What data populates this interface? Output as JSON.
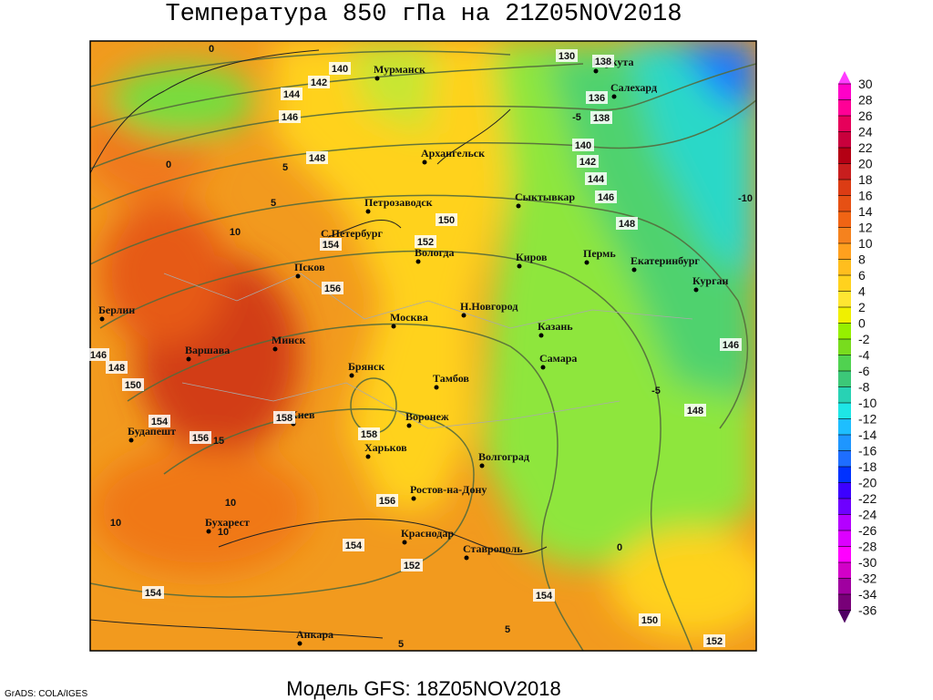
{
  "header": {
    "title": "Температура 850 гПа на 21Z05NOV2018"
  },
  "footer": {
    "model": "Модель GFS: 18Z05NOV2018",
    "credit": "GrADS: COLA/IGES"
  },
  "cities": [
    "Мурманск",
    "Воркута",
    "Салехард",
    "Архангельск",
    "Петрозаводск",
    "Сыктывкар",
    "С.Петербург",
    "Вологда",
    "Киров",
    "Пермь",
    "Екатеринбург",
    "Курган",
    "Псков",
    "Москва",
    "Н.Новгород",
    "Казань",
    "Берлин",
    "Варшава",
    "Минск",
    "Самара",
    "Брянск",
    "Тамбов",
    "Киев",
    "Воронеж",
    "Будапешт",
    "Харьков",
    "Волгоград",
    "Ростов-на-Дону",
    "Бухарест",
    "Краснодар",
    "Ставрополь",
    "Анкара"
  ],
  "contour_labels": [
    140,
    142,
    144,
    146,
    148,
    150,
    152,
    154,
    156,
    158,
    158,
    156,
    154,
    152,
    154,
    154,
    150,
    152,
    148,
    150,
    154,
    146,
    130,
    138,
    136,
    138,
    140,
    142,
    144,
    146,
    148,
    146,
    148,
    156
  ],
  "isotherm_labels": [
    0,
    0,
    5,
    5,
    10,
    10,
    10,
    10,
    5,
    -5,
    -5,
    0,
    15,
    5,
    -10
  ],
  "colorbar": {
    "ticks": [
      30,
      28,
      26,
      24,
      22,
      20,
      18,
      16,
      14,
      12,
      10,
      8,
      6,
      4,
      2,
      0,
      -2,
      -4,
      -6,
      -8,
      -10,
      -12,
      -14,
      -16,
      -18,
      -20,
      -22,
      -24,
      -26,
      -28,
      -30,
      -32,
      -34,
      -36
    ],
    "above_color": "#ff3cff",
    "below_color": "#500064",
    "colors": [
      "#ff00c8",
      "#ff0096",
      "#e6005a",
      "#c8003c",
      "#b40014",
      "#c81e1e",
      "#dc3c14",
      "#e65014",
      "#f06414",
      "#f5821e",
      "#ffa01e",
      "#ffbe1e",
      "#ffd21e",
      "#ffe632",
      "#f0f000",
      "#96f000",
      "#78dc1e",
      "#50d250",
      "#3cc878",
      "#28d2b4",
      "#1ee6e6",
      "#1ebeff",
      "#1e96ff",
      "#1e6eff",
      "#0032ff",
      "#3c00ff",
      "#6e00ff",
      "#b400ff",
      "#dc00ff",
      "#ff00ff",
      "#d200c8",
      "#a000a0",
      "#780078"
    ]
  }
}
